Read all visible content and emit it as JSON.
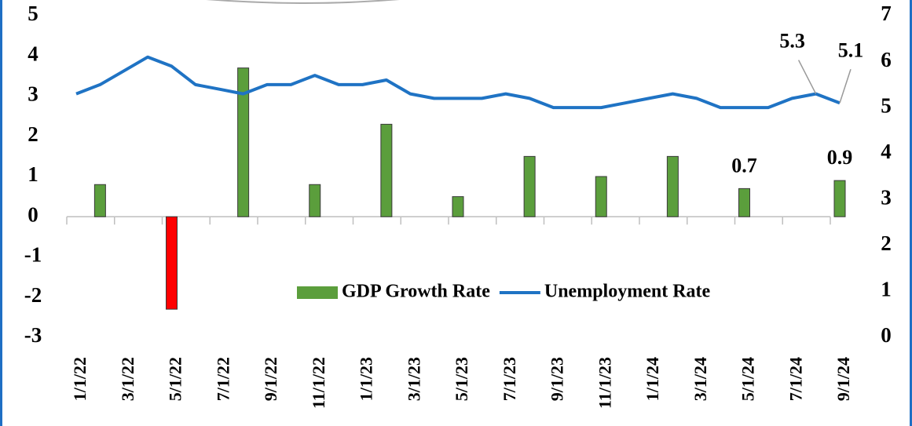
{
  "chart_data": {
    "type": "bar_line",
    "categories": [
      "1/1/22",
      null,
      "3/1/22",
      null,
      "5/1/22",
      null,
      "7/1/22",
      null,
      "9/1/22",
      null,
      "11/1/22",
      null,
      "1/1/23",
      null,
      "3/1/23",
      null,
      "5/1/23",
      null,
      "7/1/23",
      null,
      "9/1/23",
      null,
      "11/1/23",
      null,
      "1/1/24",
      null,
      "3/1/24",
      null,
      "5/1/24",
      null,
      "7/1/24",
      null,
      "9/1/24"
    ],
    "series": [
      {
        "name": "GDP Growth Rate",
        "type": "bar",
        "axis": "y",
        "color": "#5b9e3c",
        "negative_color": "#ff0000",
        "values": [
          null,
          0.8,
          null,
          null,
          -2.3,
          null,
          null,
          3.7,
          null,
          null,
          0.8,
          null,
          null,
          2.3,
          null,
          null,
          0.5,
          null,
          null,
          1.5,
          null,
          null,
          1.0,
          null,
          null,
          1.5,
          null,
          null,
          0.7,
          null,
          null,
          null,
          0.9
        ],
        "value_labels": [
          null,
          null,
          null,
          null,
          null,
          null,
          null,
          null,
          null,
          null,
          null,
          null,
          null,
          null,
          null,
          null,
          null,
          null,
          null,
          null,
          null,
          null,
          null,
          null,
          null,
          null,
          null,
          null,
          "0.7",
          null,
          null,
          null,
          "0.9"
        ]
      },
      {
        "name": "Unemployment Rate",
        "type": "line",
        "axis": "y2",
        "color": "#1f73c4",
        "values": [
          5.3,
          5.5,
          5.8,
          6.1,
          5.9,
          5.5,
          5.4,
          5.3,
          5.5,
          5.5,
          5.7,
          5.5,
          5.5,
          5.6,
          5.3,
          5.2,
          5.2,
          5.2,
          5.3,
          5.2,
          5.0,
          5.0,
          5.0,
          5.1,
          5.2,
          5.3,
          5.2,
          5.0,
          5.0,
          5.0,
          5.2,
          5.3,
          5.1
        ],
        "value_labels": [
          null,
          null,
          null,
          null,
          null,
          null,
          null,
          null,
          null,
          null,
          null,
          null,
          null,
          null,
          null,
          null,
          null,
          null,
          null,
          null,
          null,
          null,
          null,
          null,
          null,
          null,
          null,
          null,
          null,
          null,
          null,
          "5.3",
          "5.1"
        ]
      }
    ],
    "ylim": [
      -3,
      5
    ],
    "yticks": [
      -3,
      -2,
      -1,
      0,
      1,
      2,
      3,
      4,
      5
    ],
    "y2lim": [
      0,
      7
    ],
    "y2ticks": [
      0,
      1,
      2,
      3,
      4,
      5,
      6,
      7
    ],
    "legend": "bottom-right"
  }
}
